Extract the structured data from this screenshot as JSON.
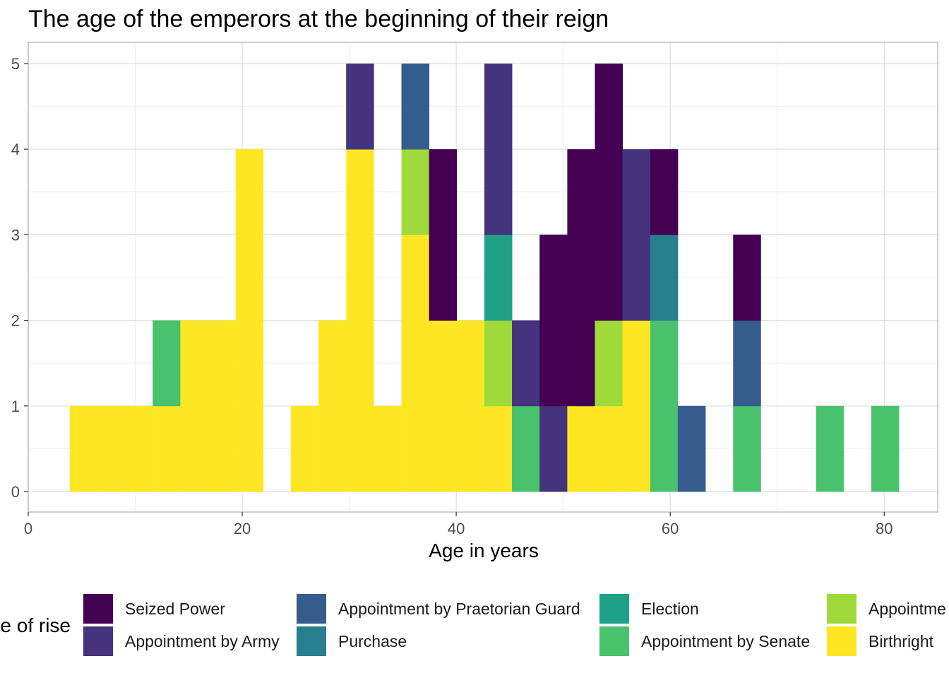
{
  "chart_data": {
    "type": "bar",
    "subtype": "stacked-histogram",
    "title": "The age of the emperors at the beginning of their reign",
    "xlabel": "Age in years",
    "ylabel": "",
    "xlim": [
      0,
      85
    ],
    "ylim": [
      0,
      5
    ],
    "x_ticks": [
      0,
      20,
      40,
      60,
      80
    ],
    "y_ticks": [
      0,
      1,
      2,
      3,
      4,
      5
    ],
    "grid": true,
    "legend_position": "bottom",
    "legend_title": "e of rise",
    "bin_width": 2.58,
    "bin_centers": [
      5.17,
      7.75,
      10.33,
      12.92,
      15.5,
      18.08,
      20.67,
      23.25,
      25.83,
      28.42,
      31.0,
      33.58,
      36.17,
      38.75,
      41.33,
      43.92,
      46.5,
      49.08,
      51.67,
      54.25,
      56.83,
      59.42,
      62.0,
      64.58,
      67.17,
      69.75,
      72.33,
      74.92,
      77.5,
      80.08
    ],
    "series": [
      {
        "name": "Seized Power",
        "color": "#440154",
        "values": [
          0,
          0,
          0,
          0,
          0,
          0,
          0,
          0,
          0,
          0,
          0,
          0,
          0,
          2,
          0,
          0,
          0,
          2,
          3,
          3,
          0,
          1,
          0,
          0,
          1,
          0,
          0,
          0,
          0,
          0
        ]
      },
      {
        "name": "Appointment by Army",
        "color": "#46337E",
        "values": [
          0,
          0,
          0,
          0,
          0,
          0,
          0,
          0,
          0,
          0,
          1,
          0,
          0,
          0,
          0,
          2,
          1,
          1,
          0,
          0,
          2,
          0,
          0,
          0,
          0,
          0,
          0,
          0,
          0,
          0
        ]
      },
      {
        "name": "Appointment by Praetorian Guard",
        "color": "#365C8D",
        "values": [
          0,
          0,
          0,
          0,
          0,
          0,
          0,
          0,
          0,
          0,
          0,
          0,
          1,
          0,
          0,
          0,
          0,
          0,
          0,
          0,
          0,
          0,
          1,
          0,
          1,
          0,
          0,
          0,
          0,
          0
        ]
      },
      {
        "name": "Purchase",
        "color": "#277F8E",
        "values": [
          0,
          0,
          0,
          0,
          0,
          0,
          0,
          0,
          0,
          0,
          0,
          0,
          0,
          0,
          0,
          0,
          0,
          0,
          0,
          0,
          0,
          1,
          0,
          0,
          0,
          0,
          0,
          0,
          0,
          0
        ]
      },
      {
        "name": "Election",
        "color": "#1FA187",
        "values": [
          0,
          0,
          0,
          0,
          0,
          0,
          0,
          0,
          0,
          0,
          0,
          0,
          0,
          0,
          0,
          1,
          0,
          0,
          0,
          0,
          0,
          0,
          0,
          0,
          0,
          0,
          0,
          0,
          0,
          0
        ]
      },
      {
        "name": "Appointment by Senate",
        "color": "#4AC16D",
        "values": [
          0,
          0,
          0,
          1,
          0,
          0,
          0,
          0,
          0,
          0,
          0,
          0,
          0,
          0,
          0,
          0,
          1,
          0,
          0,
          0,
          0,
          2,
          0,
          0,
          1,
          0,
          0,
          1,
          0,
          1
        ]
      },
      {
        "name": "Appointment by Emperor",
        "color": "#9FDA3A",
        "values": [
          0,
          0,
          0,
          0,
          0,
          0,
          0,
          0,
          0,
          0,
          0,
          0,
          1,
          0,
          0,
          1,
          0,
          0,
          0,
          1,
          0,
          0,
          0,
          0,
          0,
          0,
          0,
          0,
          0,
          0
        ]
      },
      {
        "name": "Birthright",
        "color": "#FDE725",
        "values": [
          1,
          1,
          1,
          1,
          2,
          2,
          4,
          0,
          1,
          2,
          4,
          1,
          3,
          2,
          2,
          1,
          0,
          0,
          1,
          1,
          2,
          0,
          0,
          0,
          0,
          0,
          0,
          0,
          0,
          0
        ]
      }
    ],
    "legend_entries": [
      {
        "label": "Seized Power",
        "color": "#440154"
      },
      {
        "label": "Appointment by Praetorian Guard",
        "color": "#365C8D"
      },
      {
        "label": "Election",
        "color": "#1FA187"
      },
      {
        "label": "Appointme",
        "color": "#9FDA3A"
      },
      {
        "label": "Appointment by Army",
        "color": "#46337E"
      },
      {
        "label": "Purchase",
        "color": "#277F8E"
      },
      {
        "label": "Appointment by Senate",
        "color": "#4AC16D"
      },
      {
        "label": "Birthright",
        "color": "#FDE725"
      }
    ]
  }
}
